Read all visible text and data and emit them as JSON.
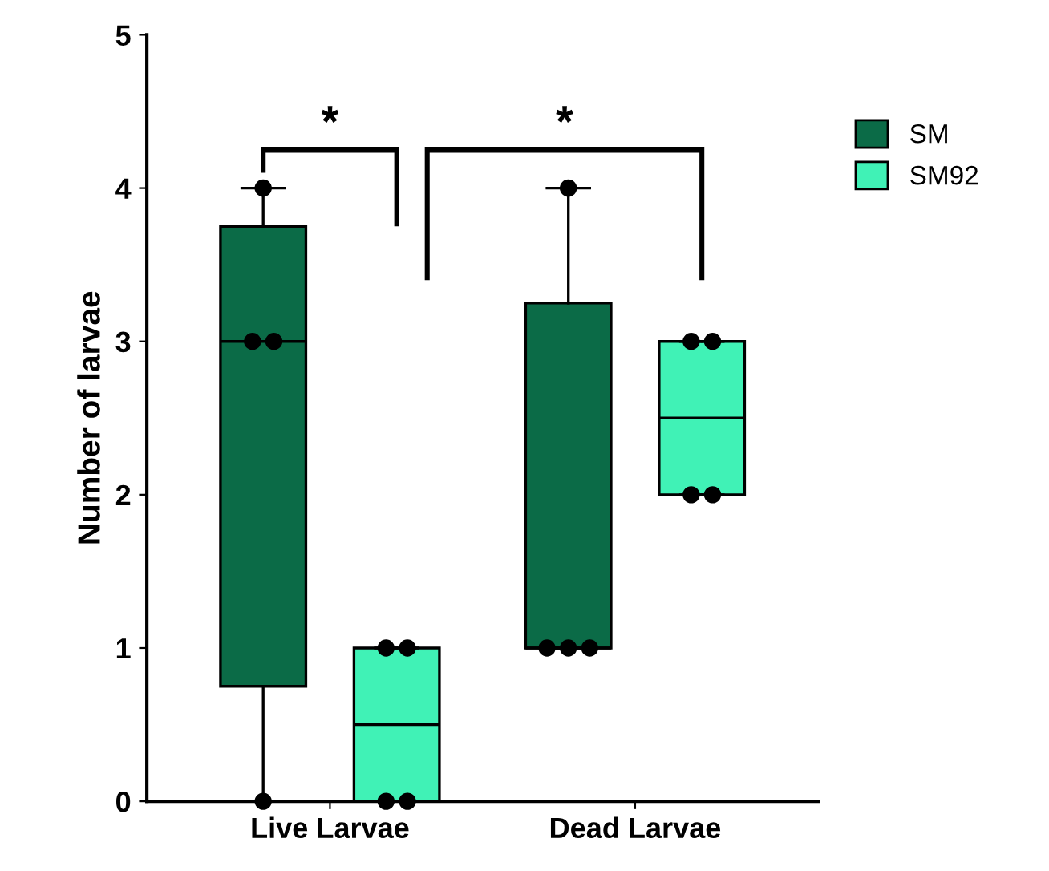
{
  "chart_data": {
    "type": "box",
    "ylabel": "Number of larvae",
    "categories": [
      "Live Larvae",
      "Dead Larvae"
    ],
    "series": [
      {
        "name": "SM",
        "color": "#0b6b47",
        "boxes": [
          {
            "low": 0,
            "q1": 0.75,
            "median": 3,
            "q3": 3.75,
            "high": 4
          },
          {
            "low": 1,
            "q1": 1,
            "median": 1,
            "q3": 3.25,
            "high": 4
          }
        ]
      },
      {
        "name": "SM92",
        "color": "#40f2b6",
        "boxes": [
          {
            "low": 0,
            "q1": 0,
            "median": 0.5,
            "q3": 1,
            "high": 1
          },
          {
            "low": 2,
            "q1": 2,
            "median": 2.5,
            "q3": 3,
            "high": 3
          }
        ]
      },
      {
        "type": "scatter",
        "color": "#000000",
        "x": [
          "Live Larvae",
          "Live Larvae",
          "Live Larvae",
          "Live Larvae",
          "Dead Larvae",
          "Dead Larvae",
          "Dead Larvae",
          "Dead Larvae"
        ],
        "values": [
          4,
          3,
          3,
          0,
          4,
          1,
          1,
          1
        ]
      },
      {
        "type": "scatter",
        "color": "#000000",
        "x": [
          "Live Larvae",
          "Live Larvae",
          "Live Larvae",
          "Live Larvae",
          "Dead Larvae",
          "Dead Larvae",
          "Dead Larvae",
          "Dead Larvae"
        ],
        "values": [
          1,
          1,
          0,
          0,
          3,
          3,
          2,
          2
        ]
      }
    ],
    "ylim": [
      0,
      5
    ],
    "yticks": [
      0,
      1,
      2,
      3,
      4,
      5
    ],
    "grid": false,
    "legend": "top right",
    "marker": "circle",
    "annotations": [
      "*",
      "*"
    ]
  }
}
